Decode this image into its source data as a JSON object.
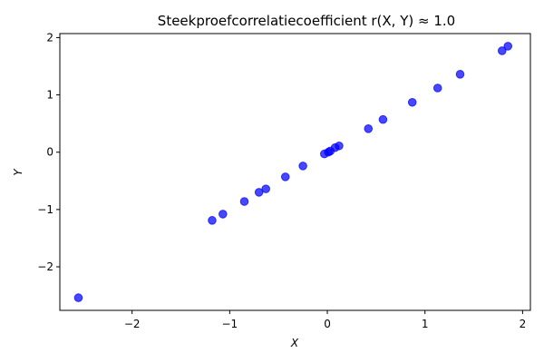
{
  "chart_data": {
    "type": "scatter",
    "title": "Steekproefcorrelatiecoefficient r(X, Y) ≈ 1.0",
    "xlabel": "X",
    "ylabel": "Y",
    "xlim": [
      -2.74,
      2.08
    ],
    "ylim": [
      -2.76,
      2.07
    ],
    "grid": false,
    "color": "#0000ff",
    "xticks": [
      -2,
      -1,
      0,
      1,
      2
    ],
    "xtick_labels": [
      "−2",
      "−1",
      "0",
      "1",
      "2"
    ],
    "yticks": [
      -2,
      -1,
      0,
      1,
      2
    ],
    "ytick_labels": [
      "−2",
      "−1",
      "0",
      "1",
      "2"
    ],
    "points": [
      {
        "x": -2.55,
        "y": -2.54
      },
      {
        "x": -1.18,
        "y": -1.19
      },
      {
        "x": -1.07,
        "y": -1.08
      },
      {
        "x": -0.85,
        "y": -0.86
      },
      {
        "x": -0.7,
        "y": -0.7
      },
      {
        "x": -0.63,
        "y": -0.64
      },
      {
        "x": -0.43,
        "y": -0.43
      },
      {
        "x": -0.25,
        "y": -0.24
      },
      {
        "x": -0.03,
        "y": -0.03
      },
      {
        "x": 0.01,
        "y": 0.0
      },
      {
        "x": 0.03,
        "y": 0.02
      },
      {
        "x": 0.08,
        "y": 0.08
      },
      {
        "x": 0.12,
        "y": 0.11
      },
      {
        "x": 0.42,
        "y": 0.41
      },
      {
        "x": 0.57,
        "y": 0.57
      },
      {
        "x": 0.87,
        "y": 0.87
      },
      {
        "x": 1.13,
        "y": 1.12
      },
      {
        "x": 1.36,
        "y": 1.36
      },
      {
        "x": 1.79,
        "y": 1.77
      },
      {
        "x": 1.85,
        "y": 1.85
      }
    ]
  }
}
